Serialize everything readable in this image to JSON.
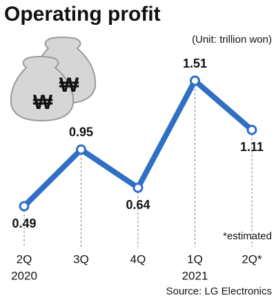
{
  "chart_data": {
    "type": "line",
    "title": "Operating profit",
    "subtitle": "(Unit: trillion won)",
    "categories": [
      "2Q",
      "3Q",
      "4Q",
      "1Q",
      "2Q*"
    ],
    "category_years": [
      "2020",
      null,
      null,
      "2021",
      null
    ],
    "values": [
      0.49,
      0.95,
      0.64,
      1.51,
      1.11
    ],
    "color": "#2f6fc4",
    "annotation": "*estimated",
    "annotation_color": "#d8232a",
    "source": "Source: LG Electronics"
  }
}
